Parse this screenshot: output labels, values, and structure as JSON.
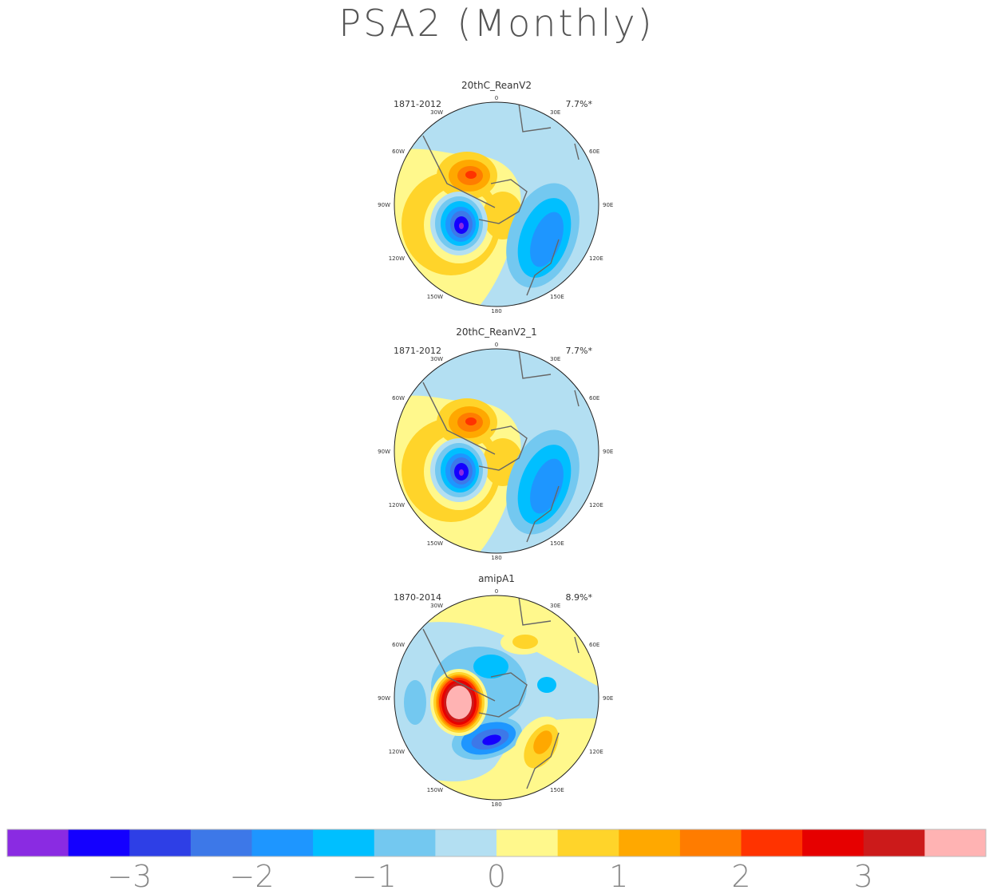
{
  "title": "PSA2 (Monthly)",
  "panels": [
    {
      "name": "20thC_ReanV2",
      "period": "1871-2012",
      "pct": "7.7%*"
    },
    {
      "name": "20thC_ReanV2_1",
      "period": "1871-2012",
      "pct": "7.7%*"
    },
    {
      "name": "amipA1",
      "period": "1870-2014",
      "pct": "8.9%*"
    }
  ],
  "lon_labels": {
    "l0": "0",
    "l30e": "30E",
    "l60e": "60E",
    "l90e": "90E",
    "l120e": "120E",
    "l150e": "150E",
    "l180": "180",
    "l150w": "150W",
    "l120w": "120W",
    "l90w": "90W",
    "l60w": "60W",
    "l30w": "30W"
  },
  "colorbar": {
    "colors": [
      "#8a2be2",
      "#1400ff",
      "#2e3fe6",
      "#3d78e8",
      "#1e96ff",
      "#00bfff",
      "#73c8f0",
      "#b3dff2",
      "#fff88c",
      "#ffd42a",
      "#ffa800",
      "#ff7c00",
      "#ff3300",
      "#e60000",
      "#cc1a1a",
      "#ffb3b3"
    ],
    "ticks": [
      "-3",
      "-2",
      "-1",
      "0",
      "1",
      "2",
      "3"
    ]
  }
}
